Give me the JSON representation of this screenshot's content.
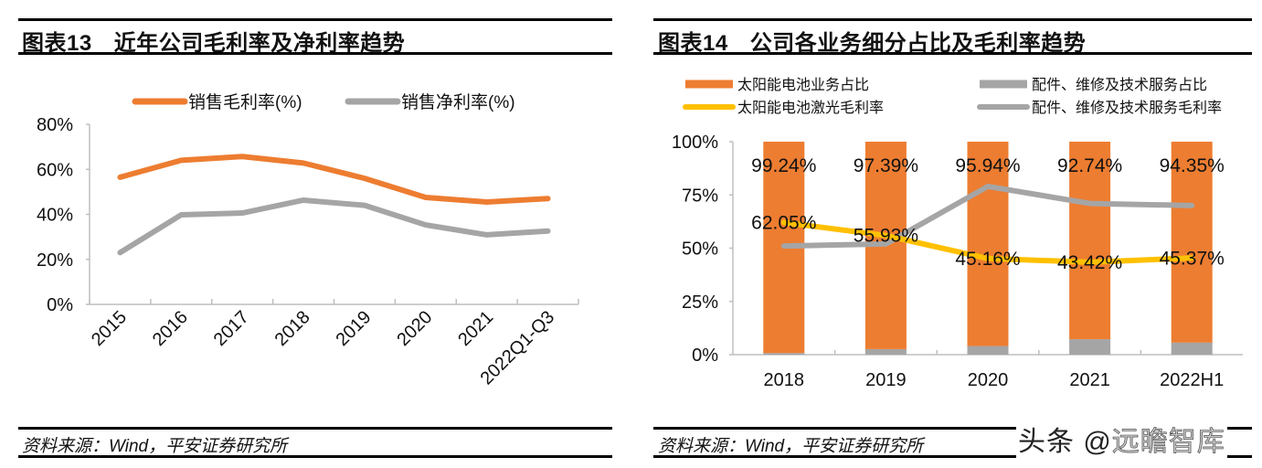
{
  "left_panel": {
    "figure_number": "图表13",
    "title": "近年公司毛利率及净利率趋势",
    "source": "资料来源：Wind，平安证券研究所"
  },
  "right_panel": {
    "figure_number": "图表14",
    "title": "公司各业务细分占比及毛利率趋势",
    "source": "资料来源：Wind，平安证券研究所"
  },
  "watermark": {
    "text": "头条 @",
    "tail": "远瞻智库"
  },
  "colors": {
    "orange": "#ED7D31",
    "gray": "#A5A5A5",
    "yellow": "#FFC000",
    "axis": "#BFBFBF"
  },
  "chart_data": [
    {
      "type": "line",
      "title": "近年公司毛利率及净利率趋势",
      "xlabel": "",
      "ylabel": "",
      "categories": [
        "2015",
        "2016",
        "2017",
        "2018",
        "2019",
        "2020",
        "2021",
        "2022Q1-Q3"
      ],
      "ylim": [
        0,
        80
      ],
      "yticks": [
        "0%",
        "20%",
        "40%",
        "60%",
        "80%"
      ],
      "ytick_values": [
        0,
        20,
        40,
        60,
        80
      ],
      "grid": false,
      "legend_position": "top",
      "series": [
        {
          "name": "销售毛利率(%)",
          "color": "#ED7D31",
          "values": [
            56.5,
            64.0,
            65.7,
            62.8,
            56.0,
            47.5,
            45.5,
            47.0
          ]
        },
        {
          "name": "销售净利率(%)",
          "color": "#A5A5A5",
          "values": [
            23.0,
            39.8,
            40.6,
            46.3,
            44.0,
            35.3,
            30.9,
            32.6
          ]
        }
      ]
    },
    {
      "type": "bar",
      "title": "公司各业务细分占比及毛利率趋势",
      "xlabel": "",
      "ylabel": "",
      "categories": [
        "2018",
        "2019",
        "2020",
        "2021",
        "2022H1"
      ],
      "ylim": [
        0,
        100
      ],
      "yticks": [
        "0%",
        "25%",
        "50%",
        "75%",
        "100%"
      ],
      "ytick_values": [
        0,
        25,
        50,
        75,
        100
      ],
      "grid": false,
      "legend_position": "top",
      "stacked": true,
      "series": [
        {
          "name": "太阳能电池业务占比",
          "kind": "bar",
          "color": "#ED7D31",
          "values": [
            99.24,
            97.39,
            95.94,
            92.74,
            94.35
          ],
          "labels": [
            "99.24%",
            "97.39%",
            "95.94%",
            "92.74%",
            "94.35%"
          ]
        },
        {
          "name": "配件、维修及技术服务占比",
          "kind": "bar",
          "color": "#A5A5A5",
          "values": [
            0.76,
            2.61,
            4.06,
            7.26,
            5.65
          ]
        },
        {
          "name": "太阳能电池激光毛利率",
          "kind": "line",
          "color": "#FFC000",
          "values": [
            62.05,
            55.93,
            45.16,
            43.42,
            45.37
          ],
          "labels": [
            "62.05%",
            "55.93%",
            "45.16%",
            "43.42%",
            "45.37%"
          ]
        },
        {
          "name": "配件、维修及技术服务毛利率",
          "kind": "line",
          "color": "#A5A5A5",
          "values": [
            51.0,
            52.0,
            79.0,
            71.0,
            70.0
          ]
        }
      ]
    }
  ]
}
